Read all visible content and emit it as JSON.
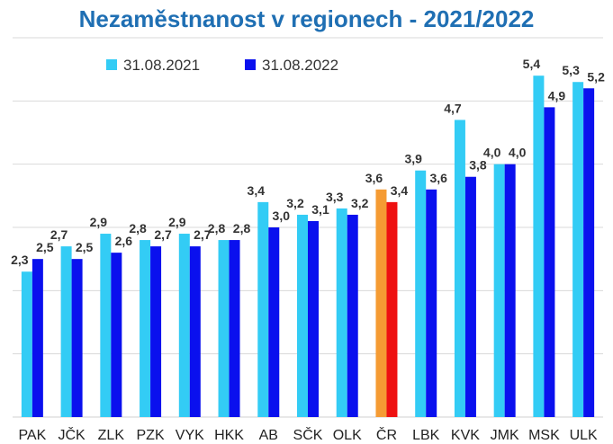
{
  "chart_data": {
    "type": "bar",
    "title": "Nezaměstnanost v regionech - 2021/2022",
    "categories": [
      "PAK",
      "JČK",
      "ZLK",
      "PZK",
      "VYK",
      "HKK",
      "AB",
      "SČK",
      "OLK",
      "ČR",
      "LBK",
      "KVK",
      "JMK",
      "MSK",
      "ULK"
    ],
    "series": [
      {
        "name": "31.08.2021",
        "color": "#33ccf5",
        "values": [
          2.3,
          2.7,
          2.9,
          2.8,
          2.9,
          2.8,
          3.4,
          3.2,
          3.3,
          3.6,
          3.9,
          4.7,
          4.0,
          5.4,
          5.3
        ],
        "labels": [
          "2,3",
          "2,7",
          "2,9",
          "2,8",
          "2,9",
          "2,8",
          "3,4",
          "3,2",
          "3,3",
          "3,6",
          "3,9",
          "4,7",
          "4,0",
          "5,4",
          "5,3"
        ]
      },
      {
        "name": "31.08.2022",
        "color": "#0a10ee",
        "values": [
          2.5,
          2.5,
          2.6,
          2.7,
          2.7,
          2.8,
          3.0,
          3.1,
          3.2,
          3.4,
          3.6,
          3.8,
          4.0,
          4.9,
          5.2
        ],
        "labels": [
          "2,5",
          "2,5",
          "2,6",
          "2,7",
          "2,7",
          "2,8",
          "3,0",
          "3,1",
          "3,2",
          "3,4",
          "3,6",
          "3,8",
          "4,0",
          "4,9",
          "5,2"
        ]
      }
    ],
    "highlight": {
      "category": "ČR",
      "colors": [
        "#f59b33",
        "#ee1111"
      ]
    },
    "ylim": [
      0,
      6
    ],
    "grid": true,
    "legend": "top-left",
    "gridline_color": "#d9d9d9"
  }
}
